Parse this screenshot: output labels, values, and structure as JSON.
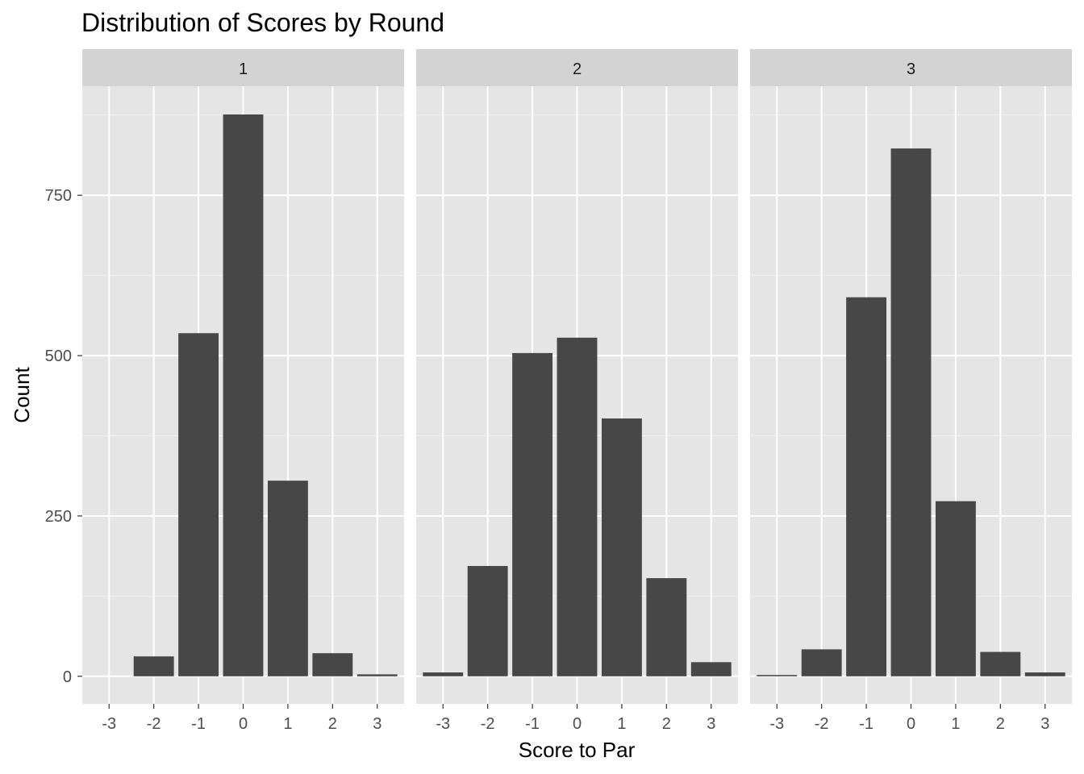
{
  "chart_data": {
    "type": "bar",
    "title": "Distribution of Scores by Round",
    "xlabel": "Score to Par",
    "ylabel": "Count",
    "categories": [
      "-3",
      "-2",
      "-1",
      "0",
      "1",
      "2",
      "3"
    ],
    "x": [
      -3,
      -2,
      -1,
      0,
      1,
      2,
      3
    ],
    "xlim": [
      -3.6,
      3.6
    ],
    "ylim": [
      -43,
      920
    ],
    "y_ticks": [
      0,
      250,
      500,
      750
    ],
    "grid": true,
    "legend": "none",
    "bar_color": "#474747",
    "panel_background": "#e5e5e5",
    "strip_background": "#d3d3d3",
    "panels": [
      {
        "label": "1",
        "values": [
          0,
          31,
          535,
          876,
          305,
          36,
          3
        ]
      },
      {
        "label": "2",
        "values": [
          6,
          172,
          504,
          528,
          402,
          153,
          22
        ]
      },
      {
        "label": "3",
        "values": [
          2,
          42,
          591,
          823,
          273,
          38,
          6
        ]
      }
    ]
  }
}
